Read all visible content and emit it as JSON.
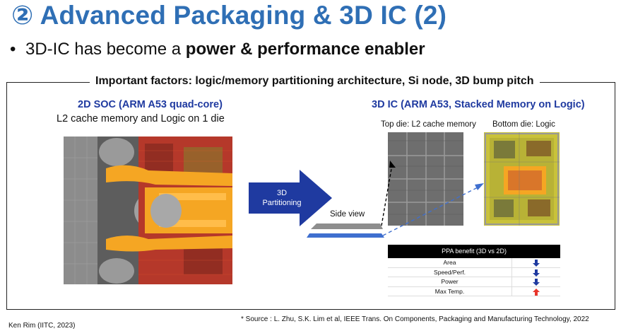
{
  "title": "② Advanced Packaging & 3D IC (2)",
  "bullet": {
    "prefix": "3D-IC has become a ",
    "bold": "power & performance enabler"
  },
  "frame_label": "Important factors: logic/memory partitioning architecture, Si node, 3D bump pitch",
  "soc": {
    "title": "2D SOC (ARM A53 quad-core)",
    "subtitle": "L2 cache memory and Logic on 1 die"
  },
  "partition": {
    "line1": "3D",
    "line2": "Partitioning"
  },
  "ic": {
    "title": "3D IC (ARM A53, Stacked Memory on Logic)",
    "top_die": "Top die: L2 cache memory",
    "bottom_die": "Bottom die: Logic",
    "side_view": "Side view"
  },
  "ppa": {
    "header": "PPA benefit (3D vs 2D)",
    "rows": [
      {
        "label": "Area",
        "direction": "down",
        "color": "#1f3aa0"
      },
      {
        "label": "Speed/Perf.",
        "direction": "down",
        "color": "#1f3aa0"
      },
      {
        "label": "Power",
        "direction": "down",
        "color": "#1f3aa0"
      },
      {
        "label": "Max Temp.",
        "direction": "up",
        "color": "#e8352b"
      }
    ]
  },
  "source": "* Source : L. Zhu, S.K. Lim et al, IEEE Trans. On Components, Packaging and Manufacturing Technology, 2022",
  "author": "Ken Rim (IITC, 2023)"
}
